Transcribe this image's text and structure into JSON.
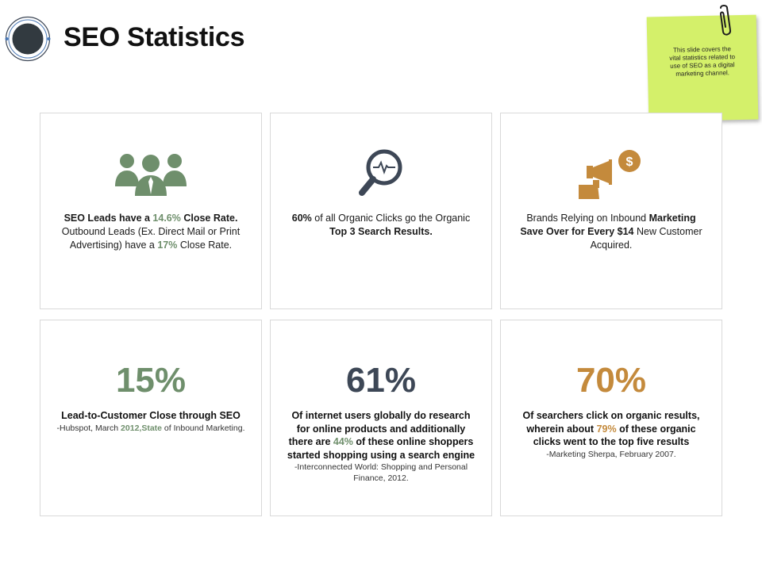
{
  "header": {
    "title": "SEO Statistics"
  },
  "note": {
    "text": "This slide covers the vital statistics related to use of SEO as a digital marketing channel."
  },
  "colors": {
    "green": "#6f8f6c",
    "navy": "#3d4756",
    "gold": "#c48a3c",
    "sticky": "#d4f06a"
  },
  "cards": {
    "leads": {
      "icon": "team-icon",
      "p1": "SEO Leads have a ",
      "v1": "14.6%",
      "p2": " Close Rate.",
      "p3": " Outbound Leads (Ex. Direct Mail or Print Advertising) have a ",
      "v2": "17%",
      "p4": " Close Rate."
    },
    "clicks": {
      "icon": "search-analytics-icon",
      "v1": "60%",
      "p1": " of all Organic Clicks go the Organic ",
      "p2": "Top 3 Search Results."
    },
    "brands": {
      "icon": "megaphone-dollar-icon",
      "p1": "Brands Relying on Inbound ",
      "p2": "Marketing Save Over for Every $14",
      "p3": " New Customer Acquired."
    },
    "close_rate": {
      "value": "15%",
      "headline": "Lead-to-Customer Close through SEO",
      "s1": "-Hubspot, March ",
      "s2": "2012,State",
      "s3": " of Inbound Marketing."
    },
    "internet": {
      "value": "61%",
      "h1": "Of internet users globally do research for online products and additionally there are ",
      "h2": "44%",
      "h3": " of these online shoppers started shopping using a search engine",
      "source": "-Interconnected World: Shopping and Personal Finance, 2012."
    },
    "searchers": {
      "value": "70%",
      "h1": "Of searchers click on organic results, wherein about ",
      "h2": "79%",
      "h3": " of these organic clicks went to the top five results",
      "source": "-Marketing Sherpa, February 2007."
    }
  }
}
